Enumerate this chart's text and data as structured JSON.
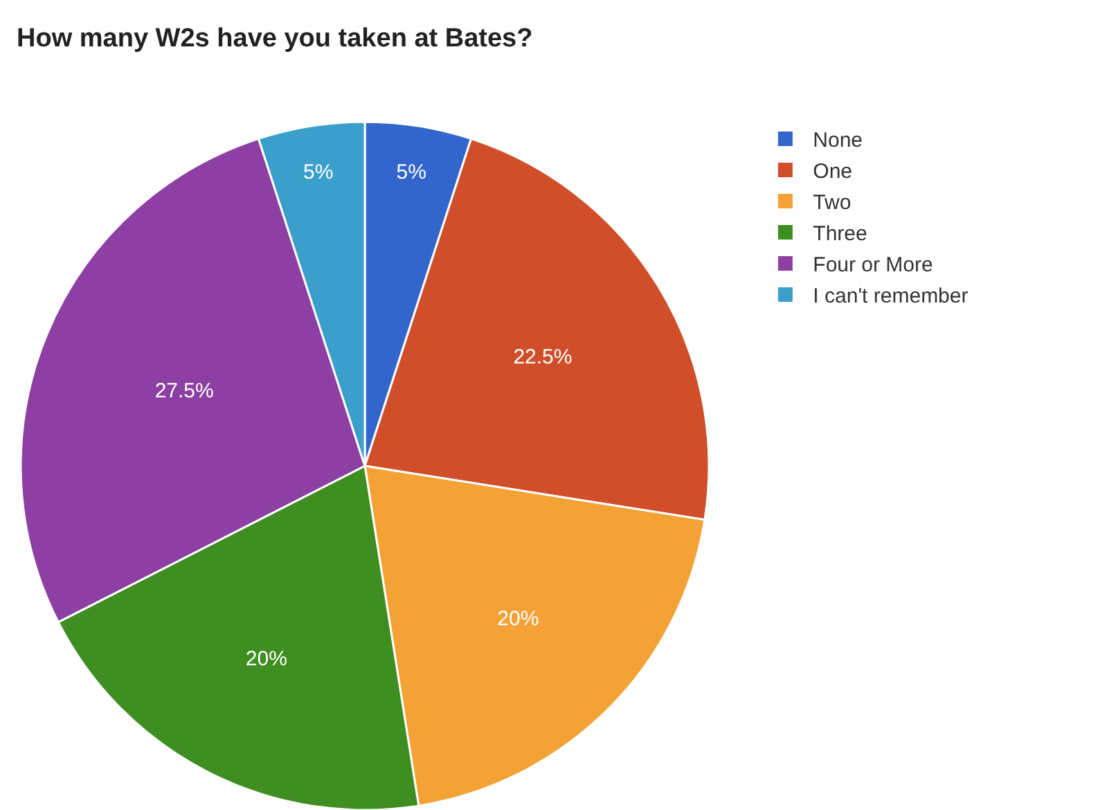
{
  "chart_data": {
    "type": "pie",
    "title": "How many W2s have you taken at Bates?",
    "categories": [
      "None",
      "One",
      "Two",
      "Three",
      "Four or More",
      "I can't remember"
    ],
    "values": [
      5,
      22.5,
      20,
      20,
      27.5,
      5
    ],
    "value_labels": [
      "5%",
      "22.5%",
      "20%",
      "20%",
      "27.5%",
      "5%"
    ],
    "colors": [
      "#3366cc",
      "#d04f2a",
      "#f4a236",
      "#3f8e22",
      "#8e3fa4",
      "#3a9fcb"
    ],
    "legend": "top right"
  }
}
